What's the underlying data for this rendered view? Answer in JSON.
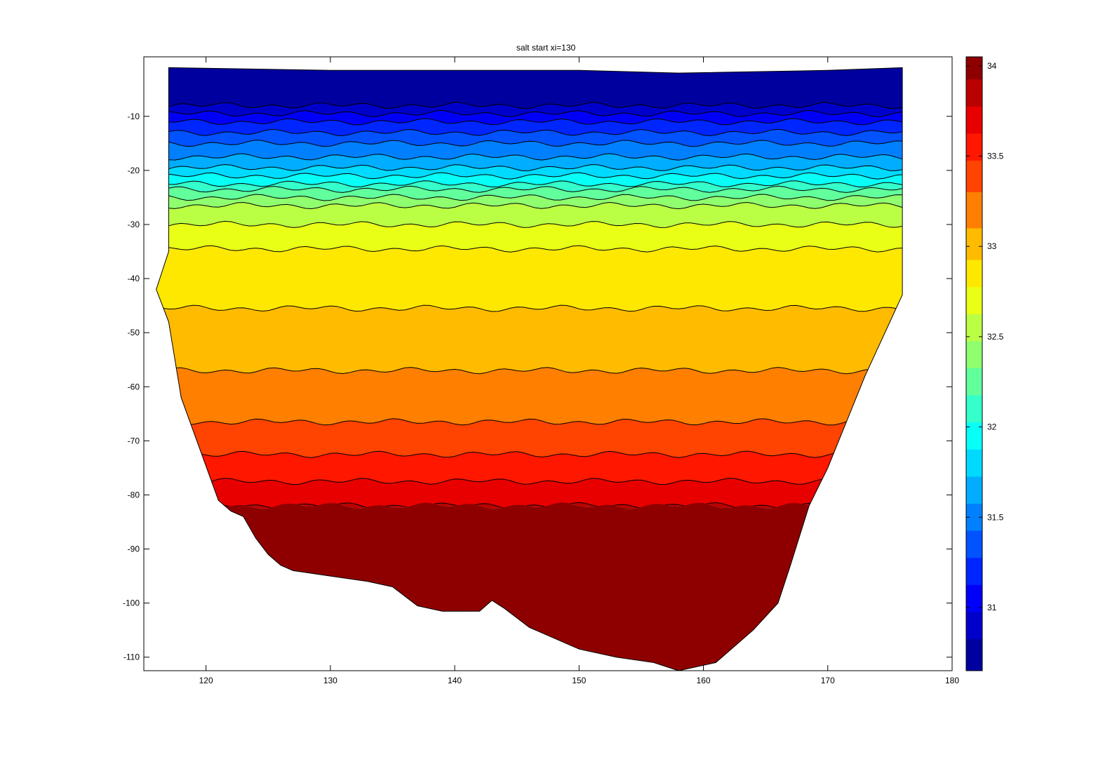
{
  "chart_data": {
    "type": "contourf",
    "title": "salt start xi=130",
    "xlabel": "",
    "ylabel": "",
    "xlim": [
      115,
      180
    ],
    "ylim": [
      -112.5,
      1
    ],
    "xticks": [
      120,
      130,
      140,
      150,
      160,
      170,
      180
    ],
    "yticks": [
      -10,
      -20,
      -30,
      -40,
      -50,
      -60,
      -70,
      -80,
      -90,
      -100,
      -110
    ],
    "colorbar": {
      "limits": [
        30.65,
        34.05
      ],
      "ticks": [
        31,
        31.5,
        32,
        32.5,
        33,
        33.5,
        34
      ],
      "colormap": "jet"
    },
    "domain_boundary": {
      "top": [
        [
          117,
          -1
        ],
        [
          130,
          -1.5
        ],
        [
          150,
          -1.5
        ],
        [
          158,
          -2
        ],
        [
          170,
          -1.5
        ],
        [
          176,
          -1
        ]
      ],
      "right": [
        [
          176,
          -1
        ],
        [
          176,
          -43
        ],
        [
          173,
          -58
        ],
        [
          170,
          -75
        ],
        [
          168.5,
          -82
        ],
        [
          167,
          -93
        ],
        [
          166,
          -100
        ],
        [
          164,
          -105
        ],
        [
          161,
          -111
        ],
        [
          158,
          -112.5
        ]
      ],
      "bottom": [
        [
          158,
          -112.5
        ],
        [
          156,
          -111
        ],
        [
          153,
          -110
        ],
        [
          150,
          -108.5
        ],
        [
          146,
          -104.5
        ],
        [
          144,
          -101
        ],
        [
          143,
          -99.5
        ],
        [
          142,
          -101.5
        ],
        [
          139,
          -101.5
        ],
        [
          137,
          -100.5
        ],
        [
          135,
          -97
        ],
        [
          133,
          -96
        ],
        [
          130,
          -95
        ],
        [
          127,
          -94
        ],
        [
          126,
          -93
        ],
        [
          125,
          -91
        ],
        [
          124,
          -88
        ],
        [
          123,
          -84
        ],
        [
          122,
          -83
        ],
        [
          121,
          -81
        ]
      ],
      "left": [
        [
          121,
          -81
        ],
        [
          118,
          -62
        ],
        [
          117,
          -48
        ],
        [
          116,
          -42
        ],
        [
          117,
          -35
        ],
        [
          117,
          -1
        ]
      ]
    },
    "contour_levels": [
      {
        "value": 30.75,
        "depth_left": -1,
        "depth_right": -1
      },
      {
        "value": 30.9,
        "depth_left": -8,
        "depth_right": -8
      },
      {
        "value": 31.05,
        "depth_left": -9.5,
        "depth_right": -9.5
      },
      {
        "value": 31.2,
        "depth_left": -11,
        "depth_right": -11
      },
      {
        "value": 31.35,
        "depth_left": -13,
        "depth_right": -13
      },
      {
        "value": 31.5,
        "depth_left": -15,
        "depth_right": -15
      },
      {
        "value": 31.65,
        "depth_left": -17.5,
        "depth_right": -17.5
      },
      {
        "value": 31.8,
        "depth_left": -19.5,
        "depth_right": -19.5
      },
      {
        "value": 31.95,
        "depth_left": -21,
        "depth_right": -21
      },
      {
        "value": 32.1,
        "depth_left": -22.5,
        "depth_right": -22.5
      },
      {
        "value": 32.25,
        "depth_left": -23.5,
        "depth_right": -23.5
      },
      {
        "value": 32.4,
        "depth_left": -25,
        "depth_right": -25
      },
      {
        "value": 32.55,
        "depth_left": -26.5,
        "depth_right": -26.5
      },
      {
        "value": 32.7,
        "depth_left": -30,
        "depth_right": -30
      },
      {
        "value": 32.85,
        "depth_left": -34.5,
        "depth_right": -34.5
      },
      {
        "value": 33.0,
        "depth_left": -45.5,
        "depth_right": -45.5
      },
      {
        "value": 33.2,
        "depth_left": -57,
        "depth_right": -57
      },
      {
        "value": 33.4,
        "depth_left": -66.5,
        "depth_right": -66.5
      },
      {
        "value": 33.55,
        "depth_left": -72.5,
        "depth_right": -72.5
      },
      {
        "value": 33.7,
        "depth_left": -77.5,
        "depth_right": -77.5
      },
      {
        "value": 33.85,
        "depth_left": -82,
        "depth_right": -82
      },
      {
        "value": 34.0,
        "depth_left": -82,
        "depth_right": -82
      }
    ]
  }
}
